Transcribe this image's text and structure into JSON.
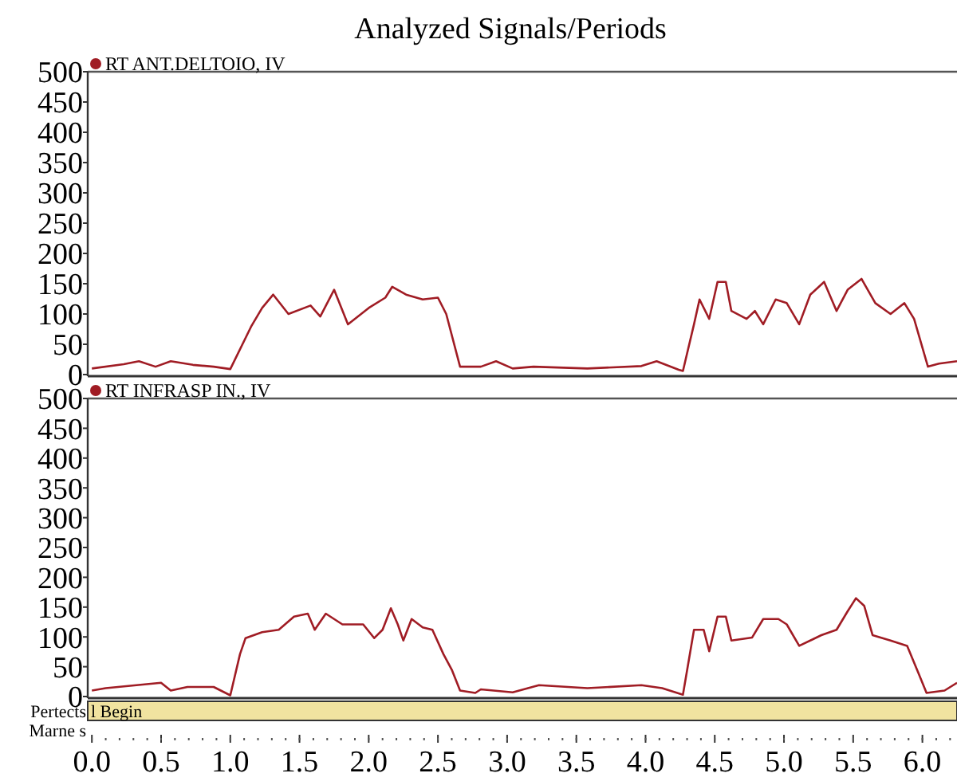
{
  "chart_data": [
    {
      "type": "line",
      "title": "Analyzed Signals/Periods",
      "legend": "top left",
      "tick_labels": "y",
      "grid": false,
      "xlim": [
        -0.03,
        6.25
      ],
      "ylim": [
        0,
        500
      ],
      "yticks": [
        0,
        50,
        100,
        150,
        200,
        250,
        300,
        350,
        400,
        450,
        500
      ],
      "series": [
        {
          "name": "RT ANT.DELTOIO, IV",
          "color": "#a01c24",
          "x": [
            0,
            0.23,
            0.34,
            0.46,
            0.57,
            0.73,
            0.88,
            1.0,
            1.15,
            1.23,
            1.31,
            1.42,
            1.58,
            1.65,
            1.75,
            1.85,
            2.0,
            2.12,
            2.17,
            2.27,
            2.39,
            2.5,
            2.56,
            2.66,
            2.81,
            2.92,
            3.04,
            3.19,
            3.58,
            3.97,
            4.08,
            4.24,
            4.27,
            4.35,
            4.39,
            4.46,
            4.52,
            4.58,
            4.62,
            4.73,
            4.79,
            4.85,
            4.94,
            5.02,
            5.11,
            5.19,
            5.29,
            5.38,
            5.46,
            5.56,
            5.66,
            5.77,
            5.87,
            5.94,
            6.04,
            6.12,
            6.25
          ],
          "values": [
            10,
            17,
            22,
            13,
            22,
            16,
            13,
            9,
            79,
            110,
            132,
            100,
            114,
            96,
            140,
            83,
            110,
            127,
            145,
            132,
            124,
            127,
            100,
            13,
            13,
            22,
            10,
            13,
            10,
            14,
            22,
            8,
            6,
            83,
            124,
            92,
            153,
            153,
            105,
            92,
            105,
            83,
            124,
            118,
            83,
            132,
            153,
            105,
            140,
            158,
            118,
            100,
            118,
            92,
            13,
            18,
            22
          ]
        }
      ]
    },
    {
      "type": "line",
      "legend": "top left",
      "grid": false,
      "xlim": [
        -0.03,
        6.25
      ],
      "ylim": [
        0,
        500
      ],
      "yticks": [
        0,
        50,
        100,
        150,
        200,
        250,
        300,
        350,
        400,
        450,
        500
      ],
      "xticks": [
        {
          "value": 0,
          "label": "0.0"
        },
        0.5,
        {
          "value": 1,
          "label": "1.0"
        },
        1.5,
        {
          "value": 2,
          "label": "2.0"
        },
        2.5,
        {
          "value": 3,
          "label": "3.0"
        },
        3.5,
        {
          "value": 4,
          "label": "4.0"
        },
        4.5,
        {
          "value": 5,
          "label": "5.0"
        },
        5.5,
        {
          "value": 6,
          "label": "6.0"
        }
      ],
      "annotations": [
        "Pertects",
        "l Begin",
        "Marne s"
      ],
      "series": [
        {
          "name": "RT INFRASP IN., IV",
          "color": "#a01c24",
          "x": [
            0,
            0.1,
            0.5,
            0.57,
            0.69,
            0.88,
            1.0,
            1.07,
            1.11,
            1.23,
            1.35,
            1.46,
            1.56,
            1.61,
            1.69,
            1.81,
            1.96,
            2.04,
            2.1,
            2.16,
            2.21,
            2.25,
            2.31,
            2.39,
            2.46,
            2.54,
            2.6,
            2.66,
            2.77,
            2.81,
            3.04,
            3.23,
            3.58,
            3.97,
            4.12,
            4.27,
            4.35,
            4.42,
            4.46,
            4.52,
            4.58,
            4.62,
            4.77,
            4.85,
            4.96,
            5.02,
            5.11,
            5.27,
            5.38,
            5.46,
            5.52,
            5.58,
            5.64,
            5.77,
            5.89,
            5.97,
            6.03,
            6.16,
            6.25
          ],
          "values": [
            10,
            14,
            23,
            10,
            16,
            16,
            2,
            71,
            98,
            108,
            112,
            134,
            139,
            112,
            139,
            121,
            121,
            98,
            112,
            148,
            121,
            94,
            130,
            116,
            112,
            71,
            45,
            10,
            6,
            12,
            7,
            19,
            14,
            19,
            14,
            3,
            112,
            112,
            76,
            134,
            134,
            94,
            99,
            130,
            130,
            121,
            85,
            103,
            112,
            143,
            165,
            152,
            103,
            94,
            85,
            40,
            6,
            10,
            23
          ]
        }
      ]
    }
  ]
}
